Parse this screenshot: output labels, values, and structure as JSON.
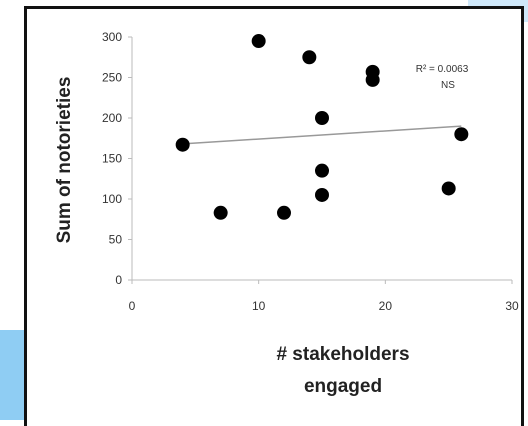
{
  "colors": {
    "background": "#ffffff",
    "frame": "#111111",
    "points": "#000000",
    "trendline": "#999999",
    "axis": "#bbbbbb",
    "accent_light_blue": "#cfe8fa",
    "accent_blue": "#8fcdf3"
  },
  "chart_data": {
    "type": "scatter",
    "title": "",
    "xlabel_lines": [
      "# stakeholders",
      "engaged"
    ],
    "ylabel": "Sum of notorieties",
    "xlim": [
      0,
      30
    ],
    "ylim": [
      0,
      300
    ],
    "xticks": [
      "0",
      "10",
      "20",
      "30"
    ],
    "yticks": [
      "0",
      "50",
      "100",
      "150",
      "200",
      "250",
      "300"
    ],
    "grid": false,
    "legend": "none",
    "points": [
      {
        "x": 4,
        "y": 167
      },
      {
        "x": 7,
        "y": 83
      },
      {
        "x": 10,
        "y": 295
      },
      {
        "x": 12,
        "y": 83
      },
      {
        "x": 14,
        "y": 275
      },
      {
        "x": 15,
        "y": 200
      },
      {
        "x": 15,
        "y": 135
      },
      {
        "x": 15,
        "y": 105
      },
      {
        "x": 19,
        "y": 257
      },
      {
        "x": 19,
        "y": 247
      },
      {
        "x": 25,
        "y": 113
      },
      {
        "x": 26,
        "y": 180
      }
    ],
    "trendline": {
      "x": [
        4,
        26
      ],
      "y": [
        168,
        190
      ]
    },
    "annotation_lines": [
      "R² = 0.0063",
      "NS"
    ]
  }
}
